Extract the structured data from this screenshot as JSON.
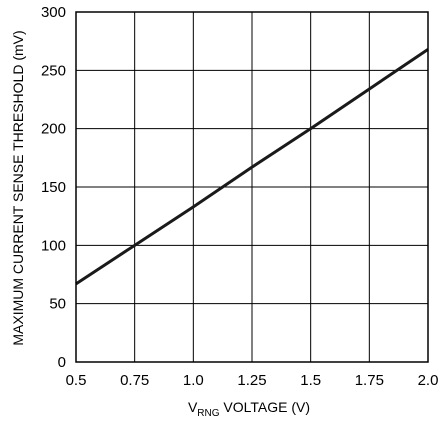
{
  "chart_data": {
    "type": "line",
    "title": "",
    "xlabel_prefix": "V",
    "xlabel_subscript": "RNG",
    "xlabel_suffix": " VOLTAGE (V)",
    "ylabel": "MAXIMUM CURRENT SENSE THRESHOLD (mV)",
    "xlim": [
      0.5,
      2.0
    ],
    "ylim": [
      0,
      300
    ],
    "x_ticks": [
      0.5,
      0.75,
      1.0,
      1.25,
      1.5,
      1.75,
      2.0
    ],
    "x_tick_labels": [
      "0.5",
      "0.75",
      "1.0",
      "1.25",
      "1.5",
      "1.75",
      "2.0"
    ],
    "y_ticks": [
      0,
      50,
      100,
      150,
      200,
      250,
      300
    ],
    "y_tick_labels": [
      "0",
      "50",
      "100",
      "150",
      "200",
      "250",
      "300"
    ],
    "grid": true,
    "series": [
      {
        "x": [
          0.5,
          0.75,
          1.0,
          1.25,
          1.5,
          1.75,
          2.0
        ],
        "y": [
          67,
          100,
          133,
          167,
          200,
          234,
          268
        ],
        "color": "#1a1a1a"
      }
    ]
  }
}
